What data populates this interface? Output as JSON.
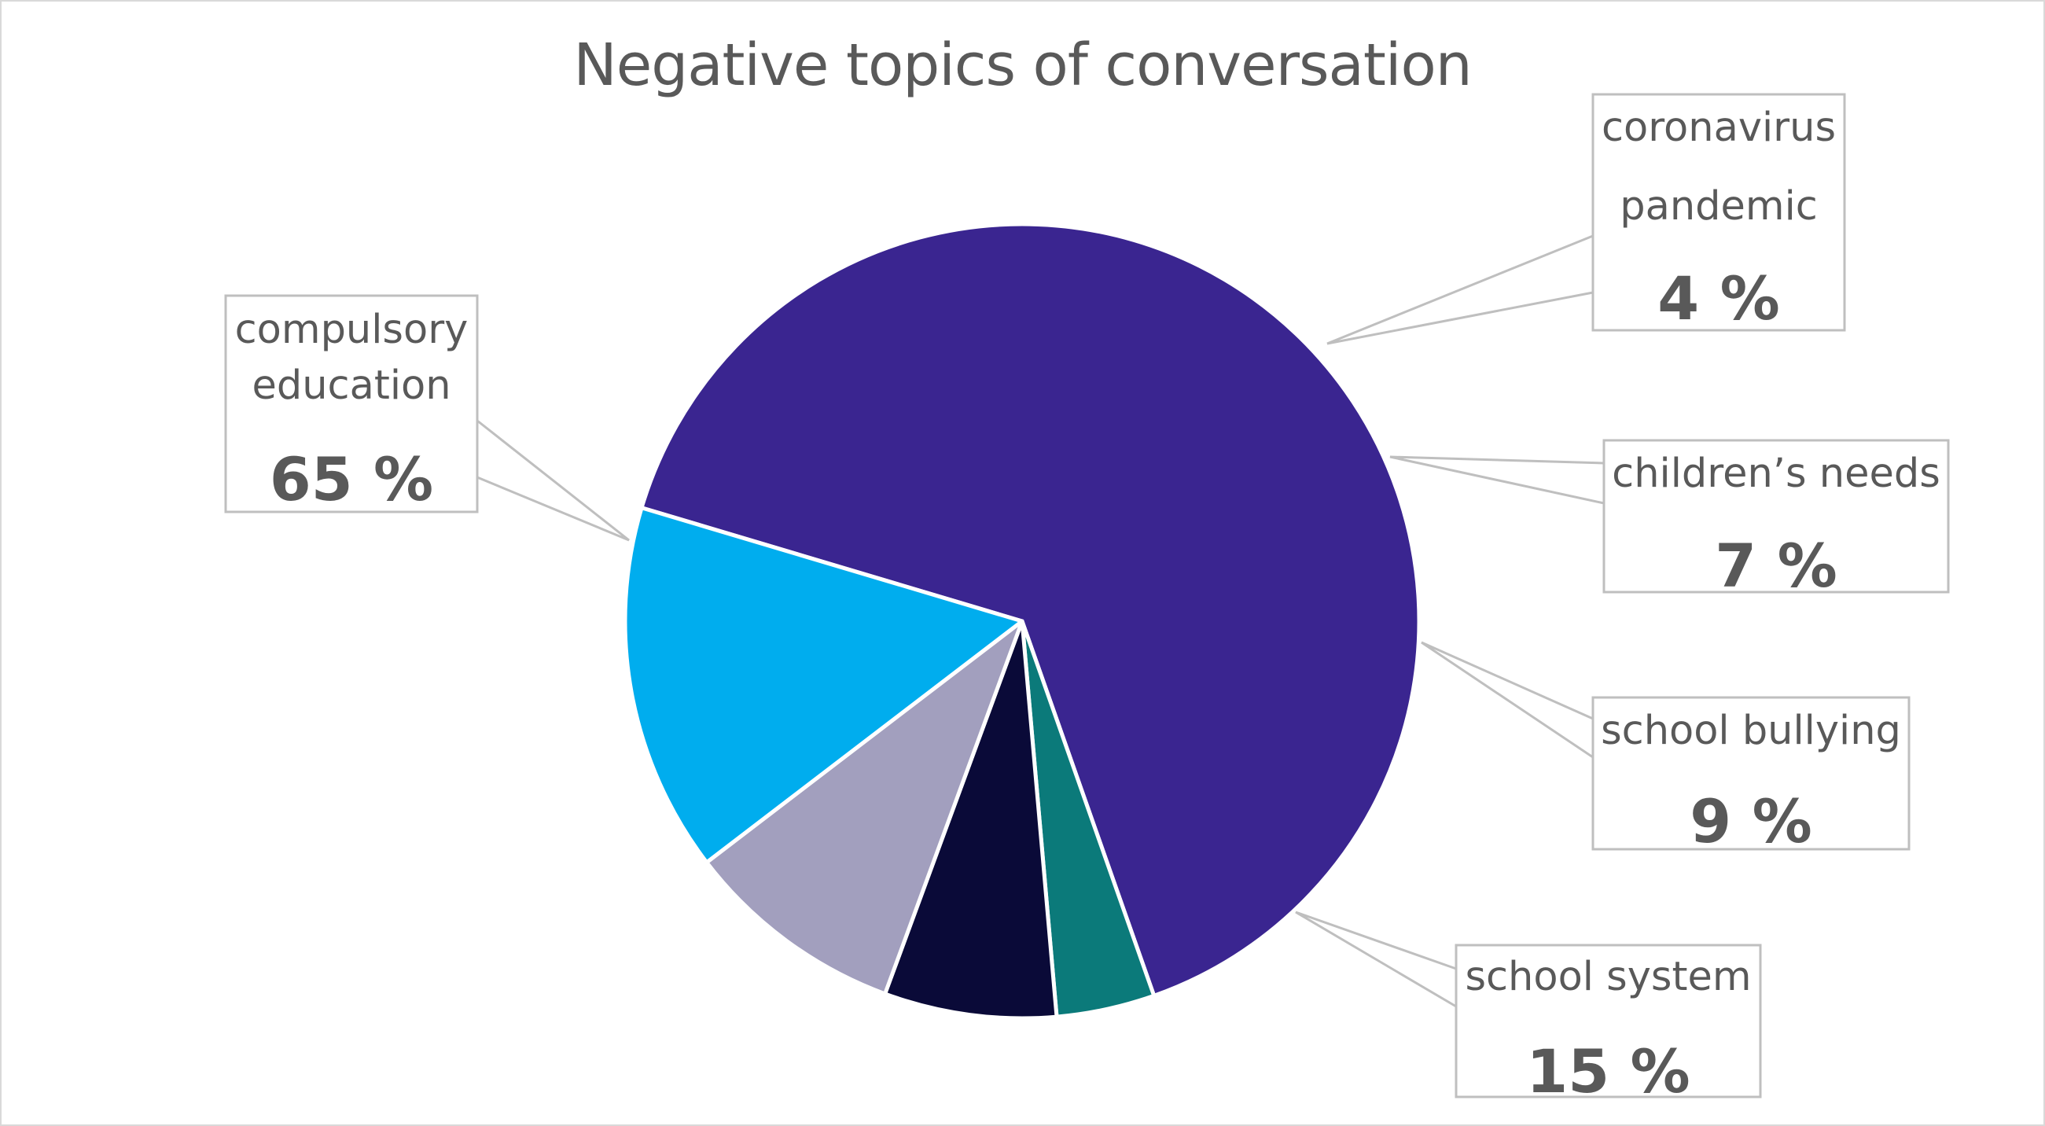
{
  "chart_data": {
    "type": "pie",
    "title": "Negative topics of conversation",
    "slices": [
      {
        "label": "compulsory education",
        "lines": [
          "compulsory",
          "education"
        ],
        "value": 65,
        "value_label": "65 %",
        "color": "#3a2590"
      },
      {
        "label": "coronavirus pandemic",
        "lines": [
          "coronavirus",
          "pandemic"
        ],
        "value": 4,
        "value_label": "4 %",
        "color": "#0b7a7a"
      },
      {
        "label": "children’s needs",
        "lines": [
          "children’s needs"
        ],
        "value": 7,
        "value_label": "7 %",
        "color": "#0a0a38"
      },
      {
        "label": "school bullying",
        "lines": [
          "school bullying"
        ],
        "value": 9,
        "value_label": "9 %",
        "color": "#a29fbe"
      },
      {
        "label": "school system",
        "lines": [
          "school system"
        ],
        "value": 15,
        "value_label": "15 %",
        "color": "#00adee"
      }
    ],
    "legend": "none",
    "data_labels": "callout boxes with leader lines"
  }
}
